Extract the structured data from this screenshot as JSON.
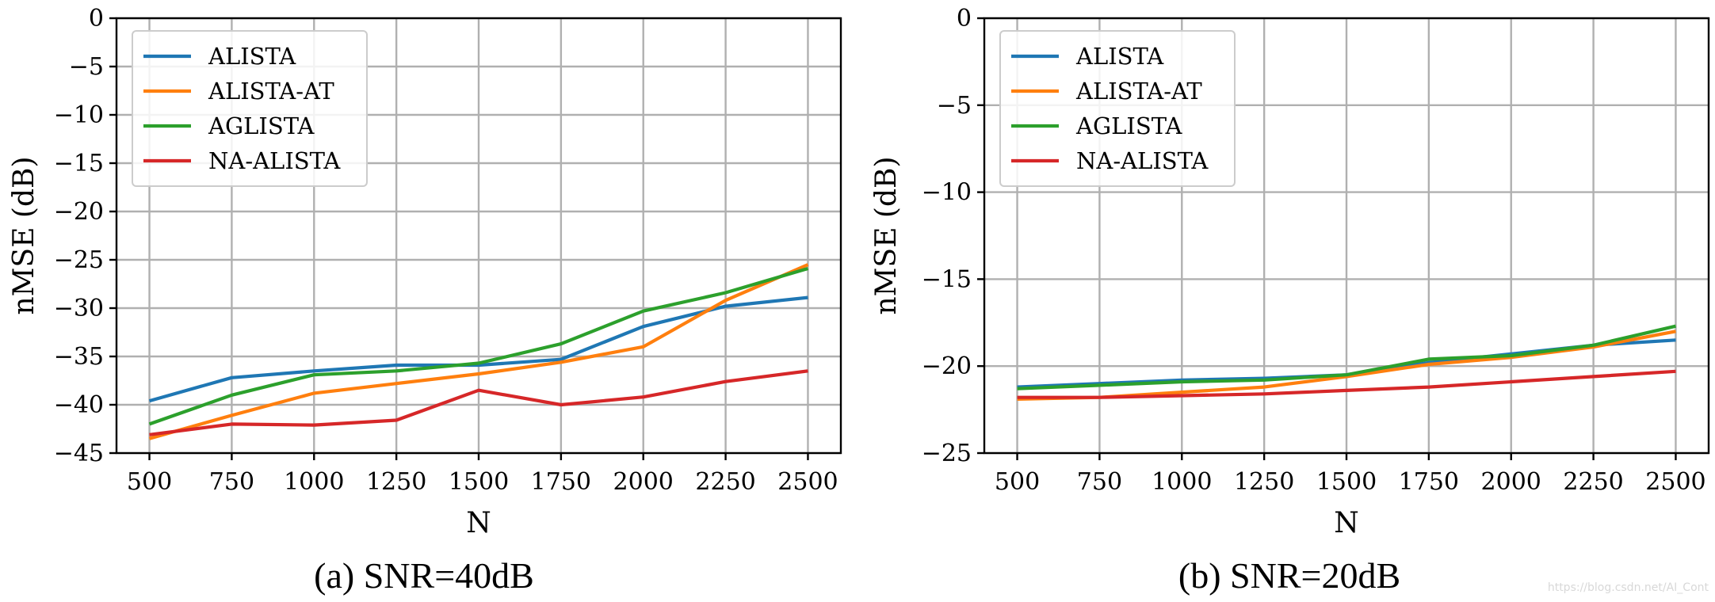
{
  "chart_data": [
    {
      "type": "line",
      "caption": "(a) SNR=40dB",
      "xlabel": "N",
      "ylabel": "nMSE (dB)",
      "x": [
        500,
        750,
        1000,
        1250,
        1500,
        1750,
        2000,
        2250,
        2500
      ],
      "xticks": [
        "500",
        "750",
        "1000",
        "1250",
        "1500",
        "1750",
        "2000",
        "2250",
        "2500"
      ],
      "xlim": [
        400,
        2600
      ],
      "ylim": [
        -45,
        0
      ],
      "yticks": [
        0,
        -5,
        -10,
        -15,
        -20,
        -25,
        -30,
        -35,
        -40,
        -45
      ],
      "ytick_labels": [
        "0",
        "−5",
        "−10",
        "−15",
        "−20",
        "−25",
        "−30",
        "−35",
        "−40",
        "−45"
      ],
      "grid": true,
      "legend_position": "top-left",
      "series": [
        {
          "name": "ALISTA",
          "color": "#1f77b4",
          "values": [
            -39.6,
            -37.2,
            -36.5,
            -35.9,
            -35.9,
            -35.3,
            -31.9,
            -29.8,
            -28.9
          ]
        },
        {
          "name": "ALISTA-AT",
          "color": "#ff7f0e",
          "values": [
            -43.5,
            -41.1,
            -38.8,
            -37.8,
            -36.8,
            -35.6,
            -34.0,
            -29.2,
            -25.5
          ]
        },
        {
          "name": "AGLISTA",
          "color": "#2ca02c",
          "values": [
            -42.0,
            -39.0,
            -36.9,
            -36.5,
            -35.7,
            -33.7,
            -30.3,
            -28.4,
            -25.9
          ]
        },
        {
          "name": "NA-ALISTA",
          "color": "#d62728",
          "values": [
            -43.1,
            -42.0,
            -42.1,
            -41.6,
            -38.5,
            -40.0,
            -39.2,
            -37.6,
            -36.5
          ]
        }
      ]
    },
    {
      "type": "line",
      "caption": "(b) SNR=20dB",
      "xlabel": "N",
      "ylabel": "nMSE (dB)",
      "x": [
        500,
        750,
        1000,
        1250,
        1500,
        1750,
        2000,
        2250,
        2500
      ],
      "xticks": [
        "500",
        "750",
        "1000",
        "1250",
        "1500",
        "1750",
        "2000",
        "2250",
        "2500"
      ],
      "xlim": [
        400,
        2600
      ],
      "ylim": [
        -25,
        0
      ],
      "yticks": [
        0,
        -5,
        -10,
        -15,
        -20,
        -25
      ],
      "ytick_labels": [
        "0",
        "−5",
        "−10",
        "−15",
        "−20",
        "−25"
      ],
      "grid": true,
      "legend_position": "top-left",
      "series": [
        {
          "name": "ALISTA",
          "color": "#1f77b4",
          "values": [
            -21.2,
            -21.0,
            -20.8,
            -20.7,
            -20.5,
            -19.8,
            -19.3,
            -18.8,
            -18.5
          ]
        },
        {
          "name": "ALISTA-AT",
          "color": "#ff7f0e",
          "values": [
            -21.9,
            -21.8,
            -21.5,
            -21.2,
            -20.6,
            -19.9,
            -19.5,
            -18.9,
            -18.0
          ]
        },
        {
          "name": "AGLISTA",
          "color": "#2ca02c",
          "values": [
            -21.3,
            -21.1,
            -20.9,
            -20.8,
            -20.5,
            -19.6,
            -19.4,
            -18.8,
            -17.7
          ]
        },
        {
          "name": "NA-ALISTA",
          "color": "#d62728",
          "values": [
            -21.8,
            -21.8,
            -21.7,
            -21.6,
            -21.4,
            -21.2,
            -20.9,
            -20.6,
            -20.3
          ]
        }
      ]
    }
  ],
  "watermark": "https://blog.csdn.net/AI_Cont"
}
